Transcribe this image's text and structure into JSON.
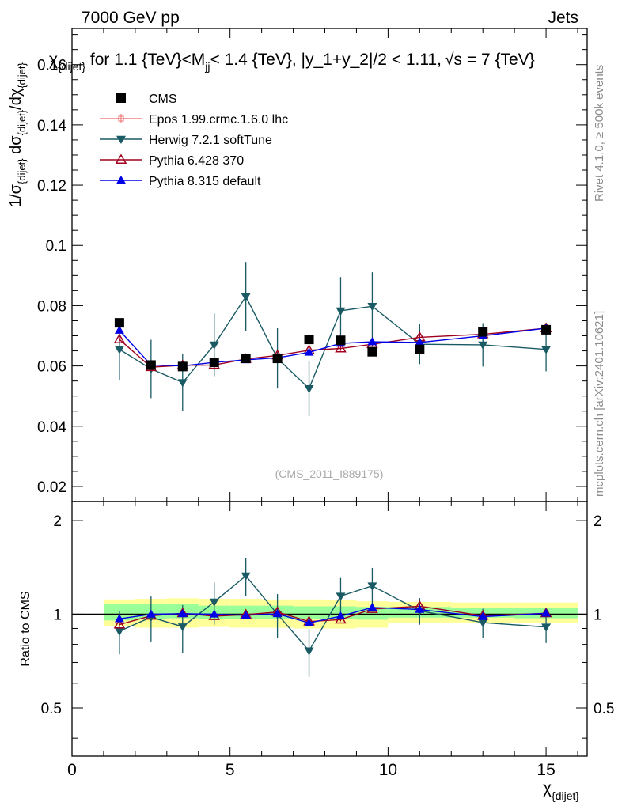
{
  "header": {
    "left": "7000 GeV pp",
    "right": "Jets"
  },
  "side_labels": {
    "rivet": "Rivet 4.1.0, ≥ 500k events",
    "mcplots": "mcplots.cern.ch [arXiv:2401.10621]"
  },
  "chart_data": {
    "type": "line",
    "title": "χ_{dijet} for 1.1 {TeV}<M_jj< 1.4 {TeV}, |y_1+y_2|/2 < 1.11, √s = 7 {TeV}",
    "title_parts": {
      "a": "χ",
      "a_sub": "{dijet}",
      "b": " for 1.1 {TeV}<M",
      "b_sub": "jj",
      "c": "< 1.4 {TeV}, |y_1+y_2|/2 < 1.11,",
      "d": "√s",
      "e": " = 7 {TeV}"
    },
    "watermark": "(CMS_2011_I889175)",
    "xlabel": "χ",
    "xlabel_sub": "{dijet}",
    "ylabel": "1/σ_{dijet} dσ_{dijet}/dχ_{dijet}",
    "ylabel_parts": {
      "p1": "1/σ",
      "s1": "{dijet}",
      "p2": " dσ",
      "s2": "{dijet}",
      "p3": "/dχ",
      "s3": "{dijet}"
    },
    "ratio_ylabel": "Ratio to CMS",
    "xlim": [
      0,
      16.3
    ],
    "ylim": [
      0.015,
      0.172
    ],
    "ratio_ylim": [
      0.35,
      2.3
    ],
    "x_ticks": [
      "0",
      "5",
      "10",
      "15"
    ],
    "y_ticks": [
      "0.02",
      "0.04",
      "0.06",
      "0.08",
      "0.1",
      "0.12",
      "0.14",
      "0.16"
    ],
    "ratio_ticks": [
      "0.5",
      "1",
      "2"
    ],
    "bins": [
      [
        1,
        2
      ],
      [
        2,
        3
      ],
      [
        3,
        4
      ],
      [
        4,
        5
      ],
      [
        5,
        6
      ],
      [
        6,
        7
      ],
      [
        7,
        8
      ],
      [
        8,
        9
      ],
      [
        9,
        10
      ],
      [
        10,
        12
      ],
      [
        12,
        14
      ],
      [
        14,
        16
      ]
    ],
    "x": [
      1.5,
      2.5,
      3.5,
      4.5,
      5.5,
      6.5,
      7.5,
      8.5,
      9.5,
      11,
      13,
      15
    ],
    "band_inner": [
      [
        0.955,
        1.075
      ],
      [
        0.965,
        1.075
      ],
      [
        0.97,
        1.075
      ],
      [
        0.965,
        1.065
      ],
      [
        0.965,
        1.065
      ],
      [
        0.965,
        1.065
      ],
      [
        0.965,
        1.06
      ],
      [
        0.965,
        1.06
      ],
      [
        0.96,
        1.055
      ],
      [
        0.975,
        1.055
      ],
      [
        0.975,
        1.05
      ],
      [
        0.97,
        1.05
      ]
    ],
    "band_outer": [
      [
        0.915,
        1.115
      ],
      [
        0.905,
        1.12
      ],
      [
        0.905,
        1.125
      ],
      [
        0.91,
        1.12
      ],
      [
        0.905,
        1.12
      ],
      [
        0.905,
        1.115
      ],
      [
        0.9,
        1.115
      ],
      [
        0.9,
        1.11
      ],
      [
        0.905,
        1.1
      ],
      [
        0.935,
        1.095
      ],
      [
        0.935,
        1.09
      ],
      [
        0.935,
        1.09
      ]
    ],
    "series": [
      {
        "name": "CMS",
        "color": "#000000",
        "marker": "square",
        "line": false,
        "values": [
          0.0743,
          0.0603,
          0.0598,
          0.0612,
          0.0625,
          0.0625,
          0.0688,
          0.0685,
          0.0647,
          0.0655,
          0.0713,
          0.072
        ],
        "errors": [
          0.0012,
          0.0009,
          0.0009,
          0.0009,
          0.0009,
          0.0009,
          0.0009,
          0.0009,
          0.0009,
          0.0009,
          0.0009,
          0.0009
        ]
      },
      {
        "name": "Epos 1.99.crmc.1.6.0 lhc",
        "color": "#f08080",
        "marker": "cross",
        "line": true,
        "values": [
          null,
          null,
          null,
          null,
          null,
          null,
          null,
          null,
          null,
          null,
          null,
          null
        ],
        "errors": [
          0,
          0,
          0,
          0,
          0,
          0,
          0,
          0,
          0,
          0,
          0,
          0
        ]
      },
      {
        "name": "Herwig 7.2.1 softTune",
        "color": "#195a64",
        "marker": "triangle-down",
        "line": true,
        "values": [
          0.0655,
          0.059,
          0.0545,
          0.067,
          0.083,
          0.0625,
          0.0525,
          0.0783,
          0.0798,
          0.0672,
          0.067,
          0.0655
        ],
        "errors": [
          0.0103,
          0.0097,
          0.0095,
          0.0104,
          0.0115,
          0.01,
          0.0092,
          0.0112,
          0.0113,
          0.0066,
          0.0072,
          0.0073
        ]
      },
      {
        "name": "Pythia 6.428 370",
        "color": "#a0001e",
        "marker": "triangle-up-open",
        "line": true,
        "values": [
          0.0688,
          0.0596,
          0.0602,
          0.0603,
          0.0623,
          0.0635,
          0.0652,
          0.0658,
          0.0672,
          0.0695,
          0.0705,
          0.0725
        ],
        "errors": [
          0.0008,
          0.0008,
          0.0008,
          0.0008,
          0.0008,
          0.0008,
          0.0008,
          0.0008,
          0.0008,
          0.0008,
          0.0008,
          0.0008
        ]
      },
      {
        "name": "Pythia 8.315 default",
        "color": "#0000e6",
        "marker": "triangle-up",
        "line": true,
        "values": [
          0.0718,
          0.0603,
          0.06,
          0.0612,
          0.062,
          0.0627,
          0.0645,
          0.0675,
          0.068,
          0.0678,
          0.07,
          0.0725
        ],
        "errors": [
          0.0008,
          0.0008,
          0.0008,
          0.0008,
          0.0008,
          0.0008,
          0.0008,
          0.0008,
          0.0008,
          0.0008,
          0.0008,
          0.0008
        ]
      }
    ]
  }
}
